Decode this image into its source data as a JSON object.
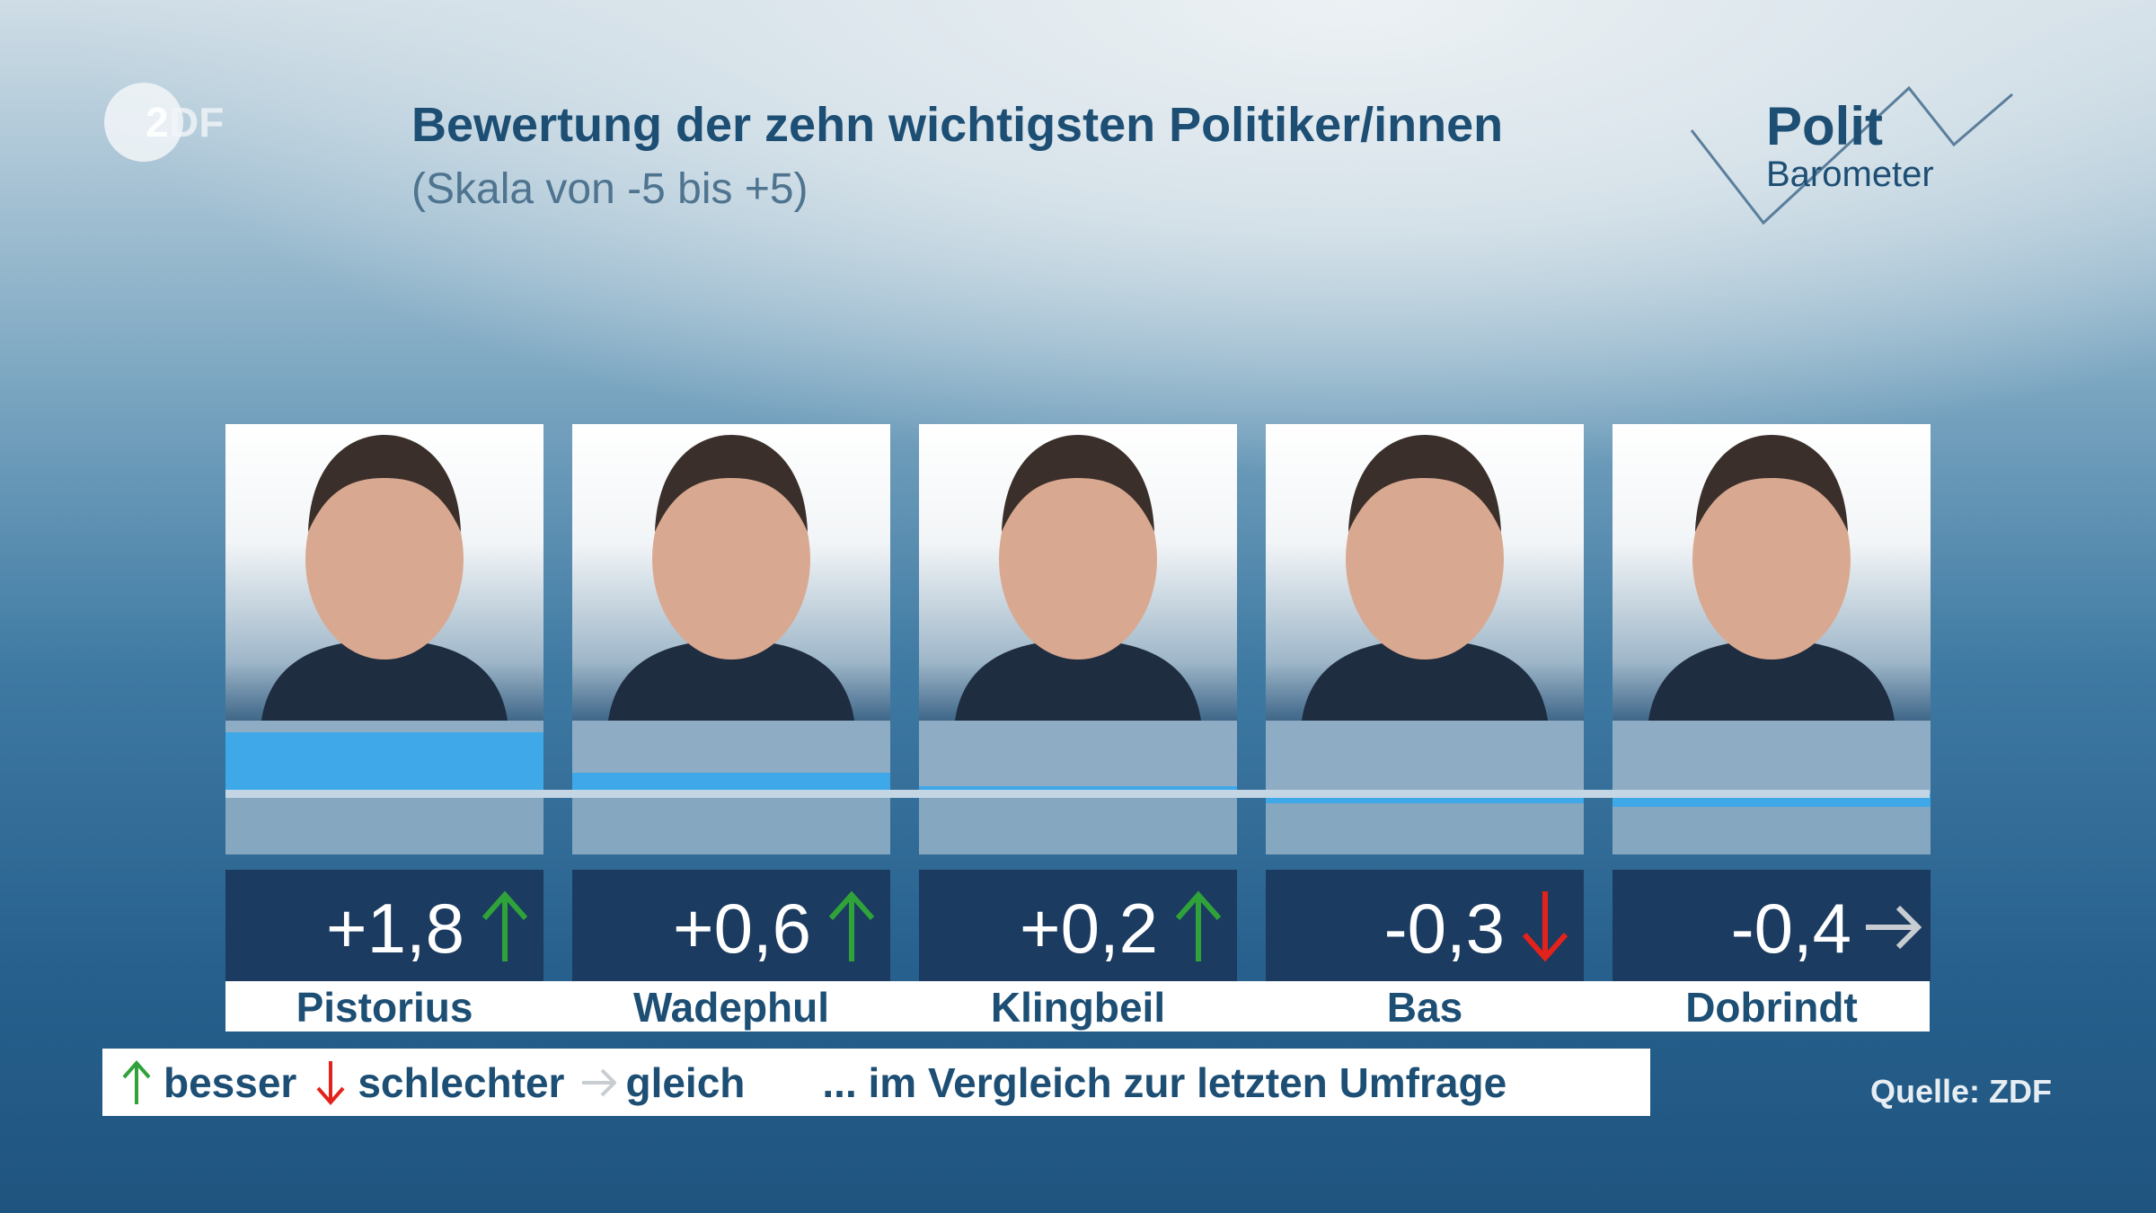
{
  "header": {
    "title": "Bewertung der zehn wichtigsten Politiker/innen",
    "subtitle": "(Skala von -5 bis +5)",
    "logo_left": "ZDF",
    "logo_right": [
      "Polit",
      "Barometer"
    ]
  },
  "colors": {
    "bar": "#3ea8e8",
    "up": "#2fa33a",
    "down": "#e3231b",
    "same": "#c8cdd2",
    "value_box": "#1b3b60",
    "text": "#1d4e74"
  },
  "chart_data": {
    "type": "bar",
    "title": "Bewertung der zehn wichtigsten Politiker/innen",
    "subtitle": "(Skala von -5 bis +5)",
    "categories": [
      "Pistorius",
      "Wadephul",
      "Klingbeil",
      "Bas",
      "Dobrindt"
    ],
    "values": [
      1.8,
      0.6,
      0.2,
      -0.3,
      -0.4
    ],
    "value_labels": [
      "+1,8",
      "+0,6",
      "+0,2",
      "-0,3",
      "-0,4"
    ],
    "trend": [
      "up",
      "up",
      "up",
      "down",
      "same"
    ],
    "ylim": [
      -5,
      5
    ]
  },
  "legend": {
    "up": "besser",
    "down": "schlechter",
    "same": "gleich",
    "note": "... im Vergleich zur letzten Umfrage"
  },
  "source": "Quelle: ZDF"
}
